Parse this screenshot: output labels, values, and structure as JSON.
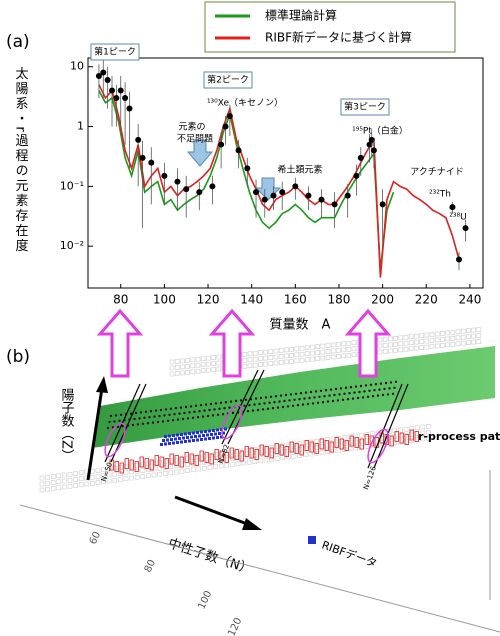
{
  "chart_data": {
    "type": "line",
    "y_label": "太陽系・r過程の元素存在度",
    "x_label": "質量数　A",
    "x": [
      70,
      73,
      76,
      79,
      82,
      85,
      88,
      91,
      94,
      97,
      100,
      103,
      106,
      109,
      112,
      115,
      118,
      121,
      124,
      127,
      130,
      133,
      136,
      139,
      142,
      145,
      148,
      151,
      154,
      157,
      160,
      163,
      166,
      169,
      172,
      175,
      178,
      181,
      184,
      187,
      190,
      193,
      196,
      199,
      202,
      205,
      208,
      211,
      214,
      217,
      220,
      223,
      226,
      229,
      232,
      235
    ],
    "series": [
      {
        "name": "標準理論計算",
        "color": "#1a9a1a",
        "values": [
          4,
          2.5,
          3,
          1.2,
          0.3,
          0.15,
          0.4,
          0.08,
          0.1,
          0.12,
          0.05,
          0.06,
          0.04,
          0.05,
          0.06,
          0.07,
          0.09,
          0.15,
          0.3,
          0.8,
          1.6,
          0.5,
          0.2,
          0.08,
          0.04,
          0.025,
          0.02,
          0.025,
          0.035,
          0.04,
          0.05,
          0.04,
          0.03,
          0.025,
          0.03,
          0.03,
          0.03,
          0.05,
          0.08,
          0.12,
          0.18,
          0.25,
          0.35,
          0.004,
          0.04,
          0.08,
          null,
          null,
          null,
          null,
          null,
          null,
          null,
          null,
          null,
          null
        ]
      },
      {
        "name": "RIBF新データに基づく計算",
        "color": "#e02020",
        "values": [
          5,
          3,
          4,
          1.5,
          0.4,
          0.2,
          0.5,
          0.1,
          0.15,
          0.2,
          0.08,
          0.1,
          0.07,
          0.09,
          0.1,
          0.12,
          0.15,
          0.2,
          0.4,
          1,
          2,
          0.6,
          0.3,
          0.15,
          0.09,
          0.05,
          0.04,
          0.06,
          0.07,
          0.08,
          0.1,
          0.08,
          0.06,
          0.05,
          0.06,
          0.05,
          0.05,
          0.07,
          0.1,
          0.15,
          0.25,
          0.4,
          0.6,
          0.003,
          0.06,
          0.12,
          0.1,
          0.09,
          0.07,
          0.06,
          0.05,
          0.04,
          0.035,
          0.03,
          0.015,
          0.006
        ]
      }
    ],
    "points": {
      "color": "#000000",
      "x": [
        70,
        72,
        74,
        76,
        78,
        80,
        82,
        84,
        88,
        90,
        94,
        100,
        106,
        110,
        116,
        122,
        126,
        128,
        130,
        134,
        138,
        142,
        146,
        150,
        154,
        160,
        166,
        172,
        178,
        184,
        188,
        190,
        194,
        195,
        196,
        200,
        232,
        235,
        238
      ],
      "values": [
        7,
        8,
        6,
        4,
        3,
        4,
        3,
        2,
        0.6,
        0.3,
        0.25,
        0.15,
        0.12,
        0.09,
        0.08,
        0.1,
        0.5,
        1,
        1.5,
        0.4,
        0.2,
        0.08,
        0.06,
        0.07,
        0.08,
        0.1,
        0.07,
        0.06,
        0.05,
        0.07,
        0.15,
        0.3,
        0.5,
        0.6,
        0.4,
        0.05,
        0.045,
        0.006,
        0.02
      ],
      "errors": [
        4,
        5,
        4,
        3,
        2,
        3,
        2.5,
        1.8,
        0.5,
        0.28,
        0.2,
        0.1,
        0.08,
        0.06,
        0.04,
        0.05,
        0.3,
        0.5,
        0.8,
        0.2,
        0.1,
        0.05,
        0.03,
        0.03,
        0.04,
        0.04,
        0.03,
        0.03,
        0.03,
        0.04,
        0.08,
        0.15,
        0.25,
        0.3,
        0.2,
        0.04,
        0.01,
        0.002,
        0.008
      ]
    },
    "xlim": [
      65,
      246
    ],
    "ylim": [
      0.002,
      14
    ],
    "log_y": true,
    "xticks": [
      80,
      100,
      120,
      140,
      160,
      180,
      200,
      220,
      240
    ],
    "yticks": [
      {
        "value": 0.01,
        "label": "10⁻²"
      },
      {
        "value": 0.1,
        "label": "10⁻¹"
      },
      1,
      10
    ],
    "legend": "top-right",
    "annotations": [
      "第1ピーク",
      "第2ピーク",
      "第3ピーク",
      "¹³⁰Xe（キセノン）",
      "元素の",
      "不足問題",
      "希土類元素",
      "¹⁹⁵Pt（白金）",
      "アクチナイド",
      "²³²Th",
      "²³⁸U"
    ]
  },
  "panel_labels": [
    "(a)",
    "(b)"
  ],
  "diagram": {
    "z_label": "陽子数（Z）",
    "n_label": "中性子数（N）",
    "path_label": "r-process path",
    "magic_labels": [
      "N=50",
      "N=82",
      "N=126"
    ],
    "legend": "RIBFデータ",
    "ticks": [
      "60",
      "80",
      "100",
      "120"
    ]
  }
}
